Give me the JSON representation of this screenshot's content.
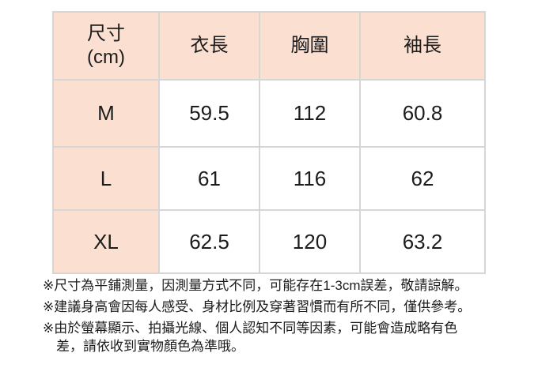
{
  "colors": {
    "page_bg": "#ffffff",
    "accent_cell_bg": "#fbe0d2",
    "data_cell_bg": "#ffffff",
    "grid_line": "#d6d6d6",
    "text": "#1c1c1c"
  },
  "chart_data": {
    "type": "table",
    "unit": "cm",
    "columns": [
      "尺寸 (cm)",
      "衣長",
      "胸圍",
      "袖長"
    ],
    "rows": [
      {
        "label": "M",
        "values": [
          59.5,
          112,
          60.8
        ]
      },
      {
        "label": "L",
        "values": [
          61,
          116,
          62
        ]
      },
      {
        "label": "XL",
        "values": [
          62.5,
          120,
          63.2
        ]
      }
    ]
  },
  "table_display": {
    "corner_line1": "尺寸",
    "corner_line2": "(cm)",
    "headers": [
      "衣長",
      "胸圍",
      "袖長"
    ]
  },
  "notes": {
    "items": [
      {
        "lines": [
          "※尺寸為平鋪測量，因測量方式不同，可能存在1-3cm誤差，敬請諒解。"
        ]
      },
      {
        "lines": [
          "※建議身高會因每人感受、身材比例及穿著習慣而有所不同，僅供參考。"
        ]
      },
      {
        "lines": [
          "※由於螢幕顯示、拍攝光線、個人認知不同等因素，可能會造成略有色",
          "差，請依收到實物顏色為準哦。"
        ]
      }
    ]
  }
}
